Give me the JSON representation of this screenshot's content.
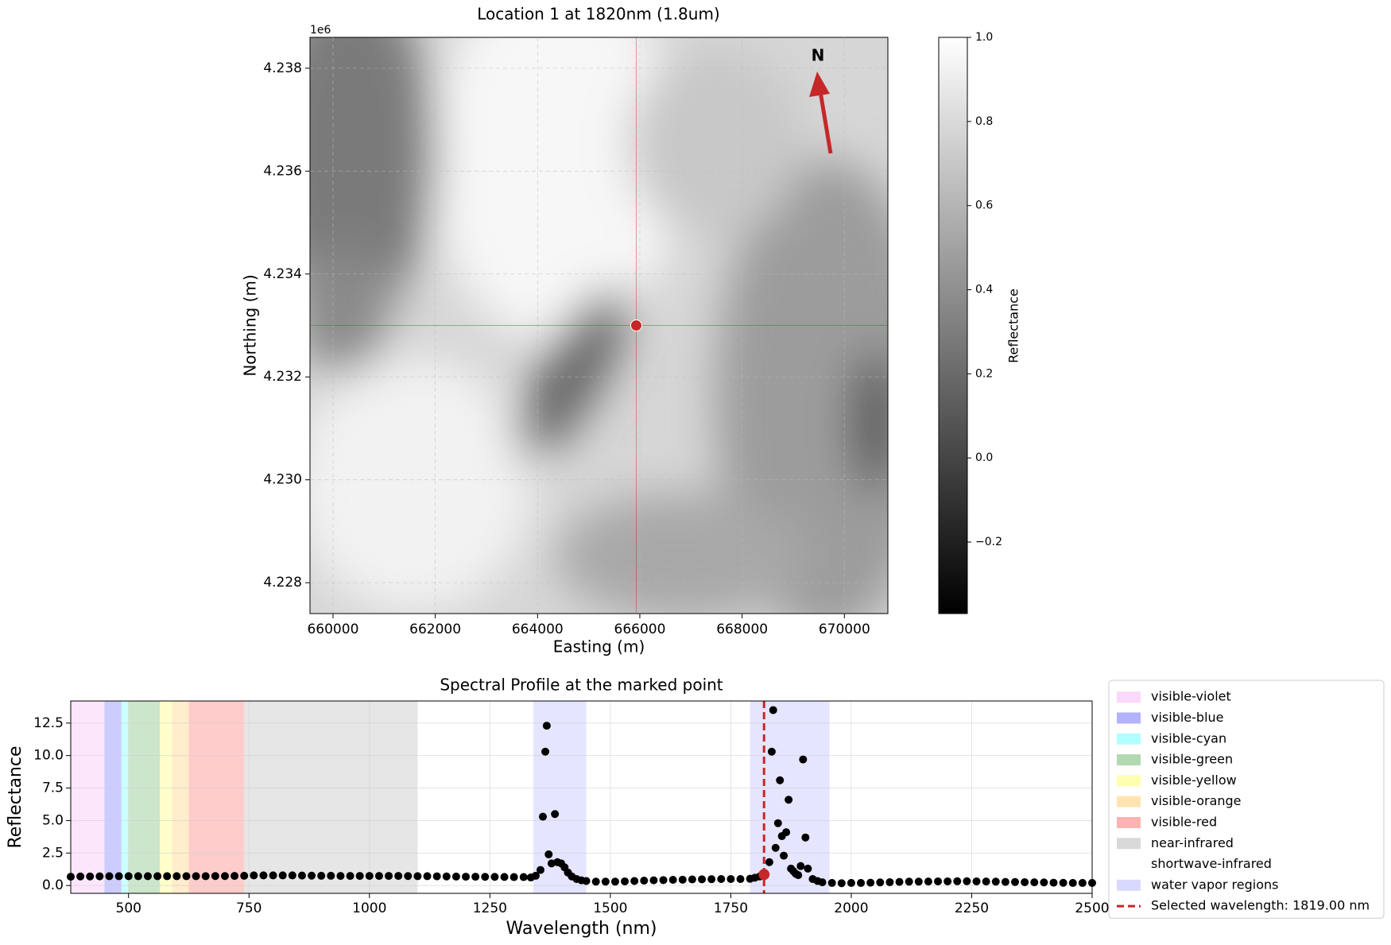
{
  "chart_data": [
    {
      "type": "image",
      "title": "Location 1 at 1820nm (1.8um)",
      "xlabel": "Easting (m)",
      "ylabel": "Northing (m)",
      "xlim": [
        659550,
        670850
      ],
      "ylim": [
        4227400,
        4238600
      ],
      "xticks": [
        660000,
        662000,
        664000,
        666000,
        668000,
        670000
      ],
      "yticks": [
        {
          "value": 4228000,
          "label": "4.228"
        },
        {
          "value": 4230000,
          "label": "4.230"
        },
        {
          "value": 4232000,
          "label": "4.232"
        },
        {
          "value": 4234000,
          "label": "4.234"
        },
        {
          "value": 4236000,
          "label": "4.236"
        },
        {
          "value": 4238000,
          "label": "4.238"
        }
      ],
      "y_offset_label": "1e6",
      "grid": true,
      "marker": {
        "x": 665930,
        "y": 4233000,
        "color": "#c62828"
      },
      "north_label": "N",
      "north_color": "#c62828",
      "colorbar": {
        "label": "Reflectance",
        "lim": [
          -0.37,
          1.0
        ],
        "ticks": [
          {
            "value": -0.2,
            "label": "−0.2"
          },
          {
            "value": 0,
            "label": "0.0"
          },
          0.2,
          0.4,
          0.6,
          0.8,
          {
            "value": 1.0,
            "label": "1.0"
          }
        ]
      }
    },
    {
      "type": "scatter",
      "title": "Spectral Profile at the marked point",
      "xlabel": "Wavelength (nm)",
      "ylabel": "Reflectance",
      "xlim": [
        380,
        2500
      ],
      "ylim": [
        -0.6,
        14.2
      ],
      "xticks": [
        500,
        750,
        1000,
        1250,
        1500,
        1750,
        2000,
        2250,
        2500
      ],
      "yticks": [
        {
          "value": 0,
          "label": "0.0"
        },
        2.5,
        {
          "value": 5,
          "label": "5.0"
        },
        7.5,
        {
          "value": 10,
          "label": "10.0"
        },
        12.5
      ],
      "grid": true,
      "color": "#000000",
      "legend": "outside-right",
      "regions": [
        {
          "name": "visible-violet",
          "color": "#ee82ee",
          "alpha": 0.2,
          "ranges": [
            [
              380,
              450
            ]
          ]
        },
        {
          "name": "visible-blue",
          "color": "#0000ff",
          "alpha": 0.2,
          "ranges": [
            [
              450,
              485
            ]
          ]
        },
        {
          "name": "visible-cyan",
          "color": "#00ffff",
          "alpha": 0.2,
          "ranges": [
            [
              485,
              500
            ]
          ]
        },
        {
          "name": "visible-green",
          "color": "#008000",
          "alpha": 0.2,
          "ranges": [
            [
              500,
              565
            ]
          ]
        },
        {
          "name": "visible-yellow",
          "color": "#ffff00",
          "alpha": 0.2,
          "ranges": [
            [
              565,
              590
            ]
          ]
        },
        {
          "name": "visible-orange",
          "color": "#ffa500",
          "alpha": 0.2,
          "ranges": [
            [
              590,
              625
            ]
          ]
        },
        {
          "name": "visible-red",
          "color": "#ff0000",
          "alpha": 0.2,
          "ranges": [
            [
              625,
              740
            ]
          ]
        },
        {
          "name": "near-infrared",
          "color": "#808080",
          "alpha": 0.2,
          "ranges": [
            [
              740,
              1100
            ]
          ]
        },
        {
          "name": "shortwave-infrared",
          "color": "#ffffff",
          "alpha": 0.2,
          "ranges": [
            [
              1100,
              2500
            ]
          ]
        },
        {
          "name": "water vapor regions",
          "color": "#0000ff",
          "alpha": 0.1,
          "ranges": [
            [
              1340,
              1450
            ],
            [
              1790,
              1955
            ]
          ]
        }
      ],
      "x": [
        380,
        400,
        420,
        440,
        460,
        480,
        500,
        520,
        540,
        560,
        580,
        600,
        620,
        640,
        660,
        680,
        700,
        720,
        740,
        760,
        780,
        800,
        820,
        840,
        860,
        880,
        900,
        920,
        940,
        960,
        980,
        1000,
        1020,
        1040,
        1060,
        1080,
        1100,
        1120,
        1140,
        1160,
        1180,
        1200,
        1220,
        1240,
        1260,
        1280,
        1300,
        1320,
        1335,
        1345,
        1355,
        1360,
        1365,
        1368,
        1372,
        1378,
        1385,
        1390,
        1398,
        1405,
        1412,
        1420,
        1430,
        1440,
        1450,
        1470,
        1490,
        1510,
        1530,
        1550,
        1570,
        1590,
        1610,
        1630,
        1650,
        1670,
        1690,
        1710,
        1730,
        1750,
        1770,
        1790,
        1800,
        1810,
        1830,
        1835,
        1838,
        1843,
        1848,
        1852,
        1856,
        1860,
        1865,
        1870,
        1875,
        1880,
        1885,
        1890,
        1895,
        1900,
        1905,
        1910,
        1920,
        1930,
        1940,
        1960,
        1980,
        2000,
        2020,
        2040,
        2060,
        2080,
        2100,
        2120,
        2140,
        2160,
        2180,
        2200,
        2220,
        2240,
        2260,
        2280,
        2300,
        2320,
        2340,
        2360,
        2380,
        2400,
        2420,
        2440,
        2460,
        2480,
        2500
      ],
      "values": [
        0.68,
        0.7,
        0.7,
        0.71,
        0.72,
        0.72,
        0.72,
        0.72,
        0.72,
        0.72,
        0.72,
        0.72,
        0.72,
        0.72,
        0.72,
        0.73,
        0.73,
        0.74,
        0.75,
        0.78,
        0.78,
        0.78,
        0.78,
        0.78,
        0.77,
        0.76,
        0.75,
        0.75,
        0.74,
        0.74,
        0.74,
        0.74,
        0.74,
        0.74,
        0.74,
        0.73,
        0.72,
        0.72,
        0.71,
        0.7,
        0.69,
        0.68,
        0.68,
        0.67,
        0.67,
        0.66,
        0.65,
        0.65,
        0.62,
        0.75,
        1.2,
        5.3,
        10.3,
        12.3,
        2.4,
        1.7,
        5.5,
        1.8,
        1.7,
        1.4,
        1.0,
        0.7,
        0.5,
        0.4,
        0.35,
        0.3,
        0.3,
        0.3,
        0.32,
        0.35,
        0.38,
        0.4,
        0.42,
        0.44,
        0.45,
        0.47,
        0.48,
        0.49,
        0.5,
        0.5,
        0.5,
        0.52,
        0.6,
        0.7,
        1.8,
        10.3,
        13.5,
        2.9,
        4.8,
        8.1,
        3.8,
        2.3,
        4.1,
        6.6,
        1.3,
        1.1,
        0.9,
        0.8,
        1.5,
        9.7,
        3.7,
        1.3,
        0.5,
        0.35,
        0.25,
        0.2,
        0.18,
        0.2,
        0.2,
        0.22,
        0.24,
        0.26,
        0.28,
        0.3,
        0.3,
        0.31,
        0.32,
        0.32,
        0.33,
        0.33,
        0.32,
        0.31,
        0.3,
        0.28,
        0.27,
        0.26,
        0.25,
        0.24,
        0.22,
        0.21,
        0.2,
        0.2,
        0.2
      ],
      "selected_point": {
        "x": 1819,
        "y": 0.85,
        "color": "#c62828"
      },
      "selected_line": {
        "x": 1819,
        "label": "Selected wavelength: 1819.00 nm",
        "color": "#c62828"
      }
    }
  ]
}
